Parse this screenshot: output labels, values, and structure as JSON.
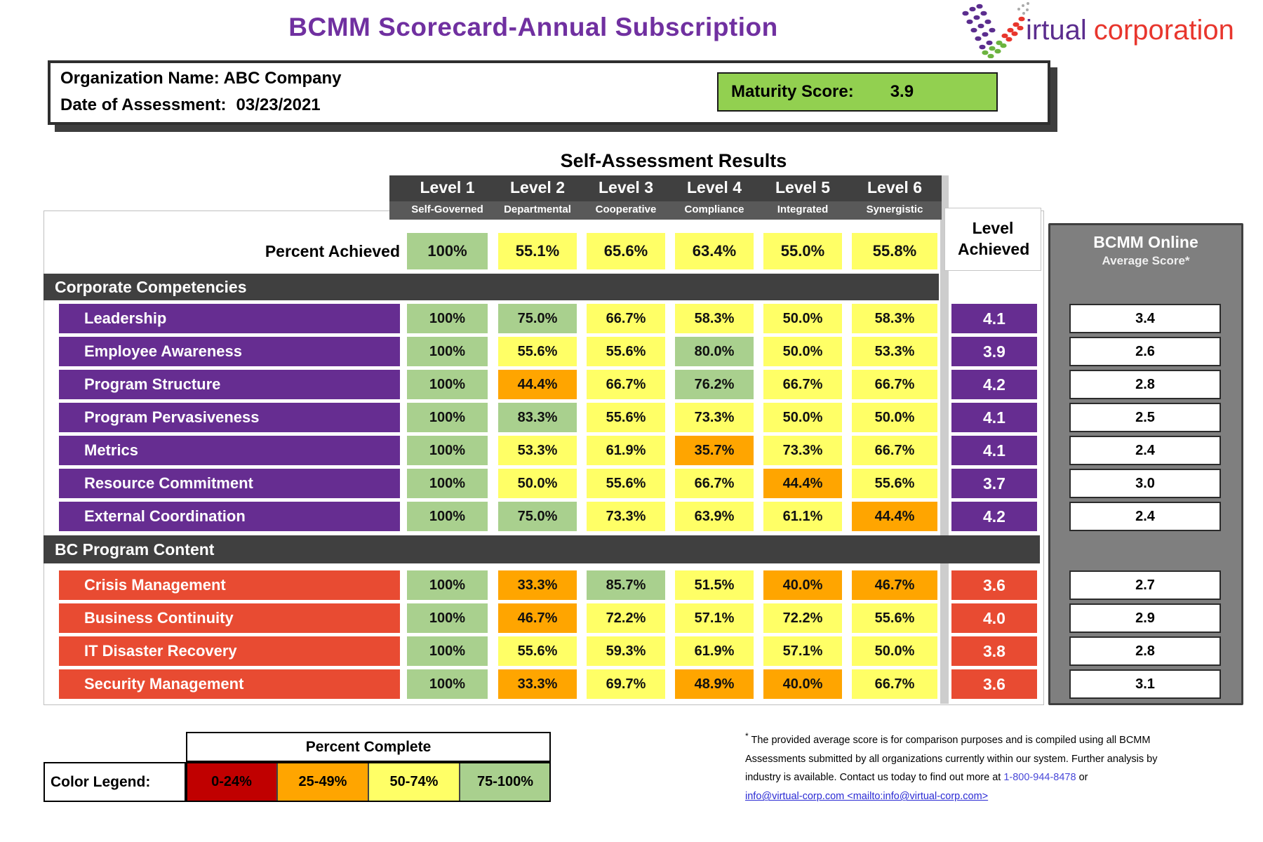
{
  "header": {
    "title": "BCMM Scorecard-Annual Subscription"
  },
  "logo": {
    "word1": "irtual",
    "word2": "corporation"
  },
  "org": {
    "line1": "Organization Name: ABC Company",
    "line2_label": "Date of Assessment:",
    "line2_value": "03/23/2021",
    "maturity_label": "Maturity Score:",
    "maturity_value": "3.9"
  },
  "results": {
    "heading": "Self-Assessment Results",
    "levels": [
      {
        "label": "Level 1",
        "sublabel": "Self-Governed"
      },
      {
        "label": "Level 2",
        "sublabel": "Departmental"
      },
      {
        "label": "Level 3",
        "sublabel": "Cooperative"
      },
      {
        "label": "Level 4",
        "sublabel": "Compliance"
      },
      {
        "label": "Level 5",
        "sublabel": "Integrated"
      },
      {
        "label": "Level 6",
        "sublabel": "Synergistic"
      }
    ],
    "percent_row": {
      "label": "Percent Achieved",
      "cells": [
        {
          "v": "100%",
          "c": "green"
        },
        {
          "v": "55.1%",
          "c": "yellow"
        },
        {
          "v": "65.6%",
          "c": "yellow"
        },
        {
          "v": "63.4%",
          "c": "yellow"
        },
        {
          "v": "55.0%",
          "c": "yellow"
        },
        {
          "v": "55.8%",
          "c": "yellow"
        }
      ]
    },
    "level_achieved_header": "Level Achieved",
    "bcmm_panel": {
      "title": "BCMM Online",
      "subtitle": "Average Score*"
    },
    "sections": [
      {
        "title": "Corporate Competencies",
        "row_color": "purple",
        "rows": [
          {
            "label": "Leadership",
            "cells": [
              {
                "v": "100%",
                "c": "green"
              },
              {
                "v": "75.0%",
                "c": "green"
              },
              {
                "v": "66.7%",
                "c": "yellow"
              },
              {
                "v": "58.3%",
                "c": "yellow"
              },
              {
                "v": "50.0%",
                "c": "yellow"
              },
              {
                "v": "58.3%",
                "c": "yellow"
              }
            ],
            "level": "4.1",
            "avg": "3.4"
          },
          {
            "label": "Employee Awareness",
            "cells": [
              {
                "v": "100%",
                "c": "green"
              },
              {
                "v": "55.6%",
                "c": "yellow"
              },
              {
                "v": "55.6%",
                "c": "yellow"
              },
              {
                "v": "80.0%",
                "c": "green"
              },
              {
                "v": "50.0%",
                "c": "yellow"
              },
              {
                "v": "53.3%",
                "c": "yellow"
              }
            ],
            "level": "3.9",
            "avg": "2.6"
          },
          {
            "label": "Program Structure",
            "cells": [
              {
                "v": "100%",
                "c": "green"
              },
              {
                "v": "44.4%",
                "c": "orange"
              },
              {
                "v": "66.7%",
                "c": "yellow"
              },
              {
                "v": "76.2%",
                "c": "green"
              },
              {
                "v": "66.7%",
                "c": "yellow"
              },
              {
                "v": "66.7%",
                "c": "yellow"
              }
            ],
            "level": "4.2",
            "avg": "2.8"
          },
          {
            "label": "Program Pervasiveness",
            "cells": [
              {
                "v": "100%",
                "c": "green"
              },
              {
                "v": "83.3%",
                "c": "green"
              },
              {
                "v": "55.6%",
                "c": "yellow"
              },
              {
                "v": "73.3%",
                "c": "yellow"
              },
              {
                "v": "50.0%",
                "c": "yellow"
              },
              {
                "v": "50.0%",
                "c": "yellow"
              }
            ],
            "level": "4.1",
            "avg": "2.5"
          },
          {
            "label": "Metrics",
            "cells": [
              {
                "v": "100%",
                "c": "green"
              },
              {
                "v": "53.3%",
                "c": "yellow"
              },
              {
                "v": "61.9%",
                "c": "yellow"
              },
              {
                "v": "35.7%",
                "c": "orange"
              },
              {
                "v": "73.3%",
                "c": "yellow"
              },
              {
                "v": "66.7%",
                "c": "yellow"
              }
            ],
            "level": "4.1",
            "avg": "2.4"
          },
          {
            "label": "Resource Commitment",
            "cells": [
              {
                "v": "100%",
                "c": "green"
              },
              {
                "v": "50.0%",
                "c": "yellow"
              },
              {
                "v": "55.6%",
                "c": "yellow"
              },
              {
                "v": "66.7%",
                "c": "yellow"
              },
              {
                "v": "44.4%",
                "c": "orange"
              },
              {
                "v": "55.6%",
                "c": "yellow"
              }
            ],
            "level": "3.7",
            "avg": "3.0"
          },
          {
            "label": "External Coordination",
            "cells": [
              {
                "v": "100%",
                "c": "green"
              },
              {
                "v": "75.0%",
                "c": "green"
              },
              {
                "v": "73.3%",
                "c": "yellow"
              },
              {
                "v": "63.9%",
                "c": "yellow"
              },
              {
                "v": "61.1%",
                "c": "yellow"
              },
              {
                "v": "44.4%",
                "c": "orange"
              }
            ],
            "level": "4.2",
            "avg": "2.4"
          }
        ]
      },
      {
        "title": "BC Program Content",
        "row_color": "red",
        "rows": [
          {
            "label": "Crisis Management",
            "cells": [
              {
                "v": "100%",
                "c": "green"
              },
              {
                "v": "33.3%",
                "c": "orange"
              },
              {
                "v": "85.7%",
                "c": "green"
              },
              {
                "v": "51.5%",
                "c": "yellow"
              },
              {
                "v": "40.0%",
                "c": "orange"
              },
              {
                "v": "46.7%",
                "c": "orange"
              }
            ],
            "level": "3.6",
            "avg": "2.7"
          },
          {
            "label": "Business Continuity",
            "cells": [
              {
                "v": "100%",
                "c": "green"
              },
              {
                "v": "46.7%",
                "c": "orange"
              },
              {
                "v": "72.2%",
                "c": "yellow"
              },
              {
                "v": "57.1%",
                "c": "yellow"
              },
              {
                "v": "72.2%",
                "c": "yellow"
              },
              {
                "v": "55.6%",
                "c": "yellow"
              }
            ],
            "level": "4.0",
            "avg": "2.9"
          },
          {
            "label": "IT Disaster Recovery",
            "cells": [
              {
                "v": "100%",
                "c": "green"
              },
              {
                "v": "55.6%",
                "c": "yellow"
              },
              {
                "v": "59.3%",
                "c": "yellow"
              },
              {
                "v": "61.9%",
                "c": "yellow"
              },
              {
                "v": "57.1%",
                "c": "yellow"
              },
              {
                "v": "50.0%",
                "c": "yellow"
              }
            ],
            "level": "3.8",
            "avg": "2.8"
          },
          {
            "label": "Security Management",
            "cells": [
              {
                "v": "100%",
                "c": "green"
              },
              {
                "v": "33.3%",
                "c": "orange"
              },
              {
                "v": "69.7%",
                "c": "yellow"
              },
              {
                "v": "48.9%",
                "c": "orange"
              },
              {
                "v": "40.0%",
                "c": "orange"
              },
              {
                "v": "66.7%",
                "c": "yellow"
              }
            ],
            "level": "3.6",
            "avg": "3.1"
          }
        ]
      }
    ]
  },
  "legend": {
    "title": "Percent Complete",
    "label": "Color Legend:",
    "items": [
      {
        "label": "0-24%",
        "c": "#C00000"
      },
      {
        "label": "25-49%",
        "c": "#FFA500"
      },
      {
        "label": "50-74%",
        "c": "#FFFF66"
      },
      {
        "label": "75-100%",
        "c": "#A9D08E"
      }
    ]
  },
  "footnote": {
    "star": "*",
    "text": " The provided average score is for comparison purposes and is compiled using all BCMM Assessments submitted by all organizations currently within our system. Further analysis by industry is available. Contact us today to find out more at ",
    "phone": "1-800-944-8478",
    "or_text": " or ",
    "link": "info@virtual-corp.com <mailto:info@virtual-corp.com>"
  },
  "colors": {
    "green": "#A9D08E",
    "yellow": "#FFFF66",
    "orange": "#FFA500",
    "purple": "#662D91",
    "red": "#E84B32",
    "maturity_green": "#92D050",
    "title_purple": "#7030A0",
    "section_gray": "#404040",
    "subbar_gray": "#595959",
    "panel_gray": "#7F7F7F"
  }
}
